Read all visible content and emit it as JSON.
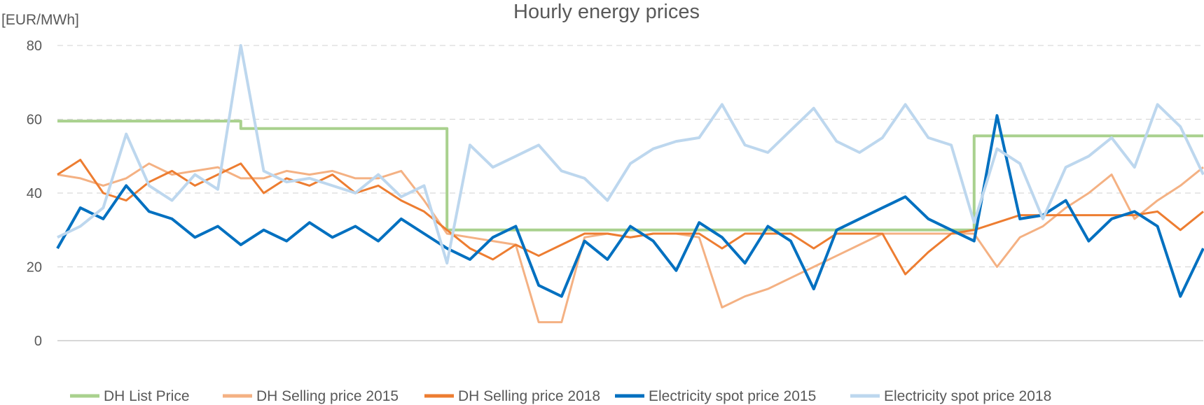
{
  "chart_data": {
    "type": "line",
    "title": "Hourly energy prices",
    "ylabel": "[EUR/MWh]",
    "ylim": [
      0,
      80
    ],
    "yticks": [
      "0",
      "20",
      "40",
      "60",
      "80"
    ],
    "grid": true,
    "legend_position": "bottom",
    "x": [
      0,
      2,
      4,
      6,
      8,
      10,
      12,
      14,
      16,
      18,
      20,
      22,
      24,
      26,
      28,
      30,
      32,
      34,
      36,
      38,
      40,
      42,
      44,
      46,
      48,
      50,
      52,
      54,
      56,
      58,
      60,
      62,
      64,
      66,
      68,
      70,
      72,
      74,
      76,
      78,
      80,
      82,
      84,
      86,
      88,
      90,
      92,
      94,
      96,
      98,
      100
    ],
    "series": [
      {
        "name": "DH List Price",
        "color": "#a9d18e",
        "values": [
          59.5,
          59.5,
          59.5,
          59.5,
          59.5,
          59.5,
          59.5,
          59.5,
          57.5,
          57.5,
          57.5,
          57.5,
          57.5,
          57.5,
          57.5,
          57.5,
          57.5,
          30,
          30,
          30,
          30,
          30,
          30,
          30,
          30,
          30,
          30,
          30,
          30,
          30,
          30,
          30,
          30,
          30,
          30,
          30,
          30,
          30,
          30,
          30,
          55.5,
          55.5,
          55.5,
          55.5,
          55.5,
          55.5,
          55.5,
          55.5,
          55.5,
          55.5,
          55.5
        ]
      },
      {
        "name": "DH Selling price 2015",
        "color": "#f4b183",
        "values": [
          45,
          44,
          42,
          44,
          48,
          45,
          46,
          47,
          44,
          44,
          46,
          45,
          46,
          44,
          44,
          46,
          38,
          29,
          28,
          27,
          26,
          5,
          5,
          28,
          29,
          28,
          29,
          29,
          28,
          9,
          12,
          14,
          17,
          20,
          23,
          26,
          29,
          29,
          29,
          29,
          29,
          20,
          28,
          31,
          36,
          40,
          45,
          33,
          38,
          42,
          47
        ]
      },
      {
        "name": "DH Selling price 2018",
        "color": "#ed7d31",
        "values": [
          45,
          49,
          40,
          38,
          43,
          46,
          42,
          45,
          48,
          40,
          44,
          42,
          45,
          40,
          42,
          38,
          35,
          30,
          25,
          22,
          26,
          23,
          26,
          29,
          29,
          28,
          29,
          29,
          29,
          25,
          29,
          29,
          29,
          25,
          29,
          29,
          29,
          18,
          24,
          29,
          30,
          32,
          34,
          34,
          34,
          34,
          34,
          34,
          35,
          30,
          35
        ]
      },
      {
        "name": "Electricity spot price 2015",
        "color": "#0070c0",
        "values": [
          25,
          36,
          33,
          42,
          35,
          33,
          28,
          31,
          26,
          30,
          27,
          32,
          28,
          31,
          27,
          33,
          29,
          25,
          22,
          28,
          31,
          15,
          12,
          27,
          22,
          31,
          27,
          19,
          32,
          28,
          21,
          31,
          27,
          14,
          30,
          33,
          36,
          39,
          33,
          30,
          27,
          61,
          33,
          34,
          38,
          27,
          33,
          35,
          31,
          12,
          25
        ]
      },
      {
        "name": "Electricity spot price 2018",
        "color": "#bdd7ee",
        "values": [
          28,
          31,
          36,
          56,
          42,
          38,
          45,
          41,
          80,
          46,
          43,
          44,
          42,
          40,
          45,
          39,
          42,
          21,
          53,
          47,
          50,
          53,
          46,
          44,
          38,
          48,
          52,
          54,
          55,
          64,
          53,
          51,
          57,
          63,
          54,
          51,
          55,
          64,
          55,
          53,
          32,
          52,
          48,
          33,
          47,
          50,
          55,
          47,
          64,
          58,
          45
        ]
      }
    ]
  }
}
